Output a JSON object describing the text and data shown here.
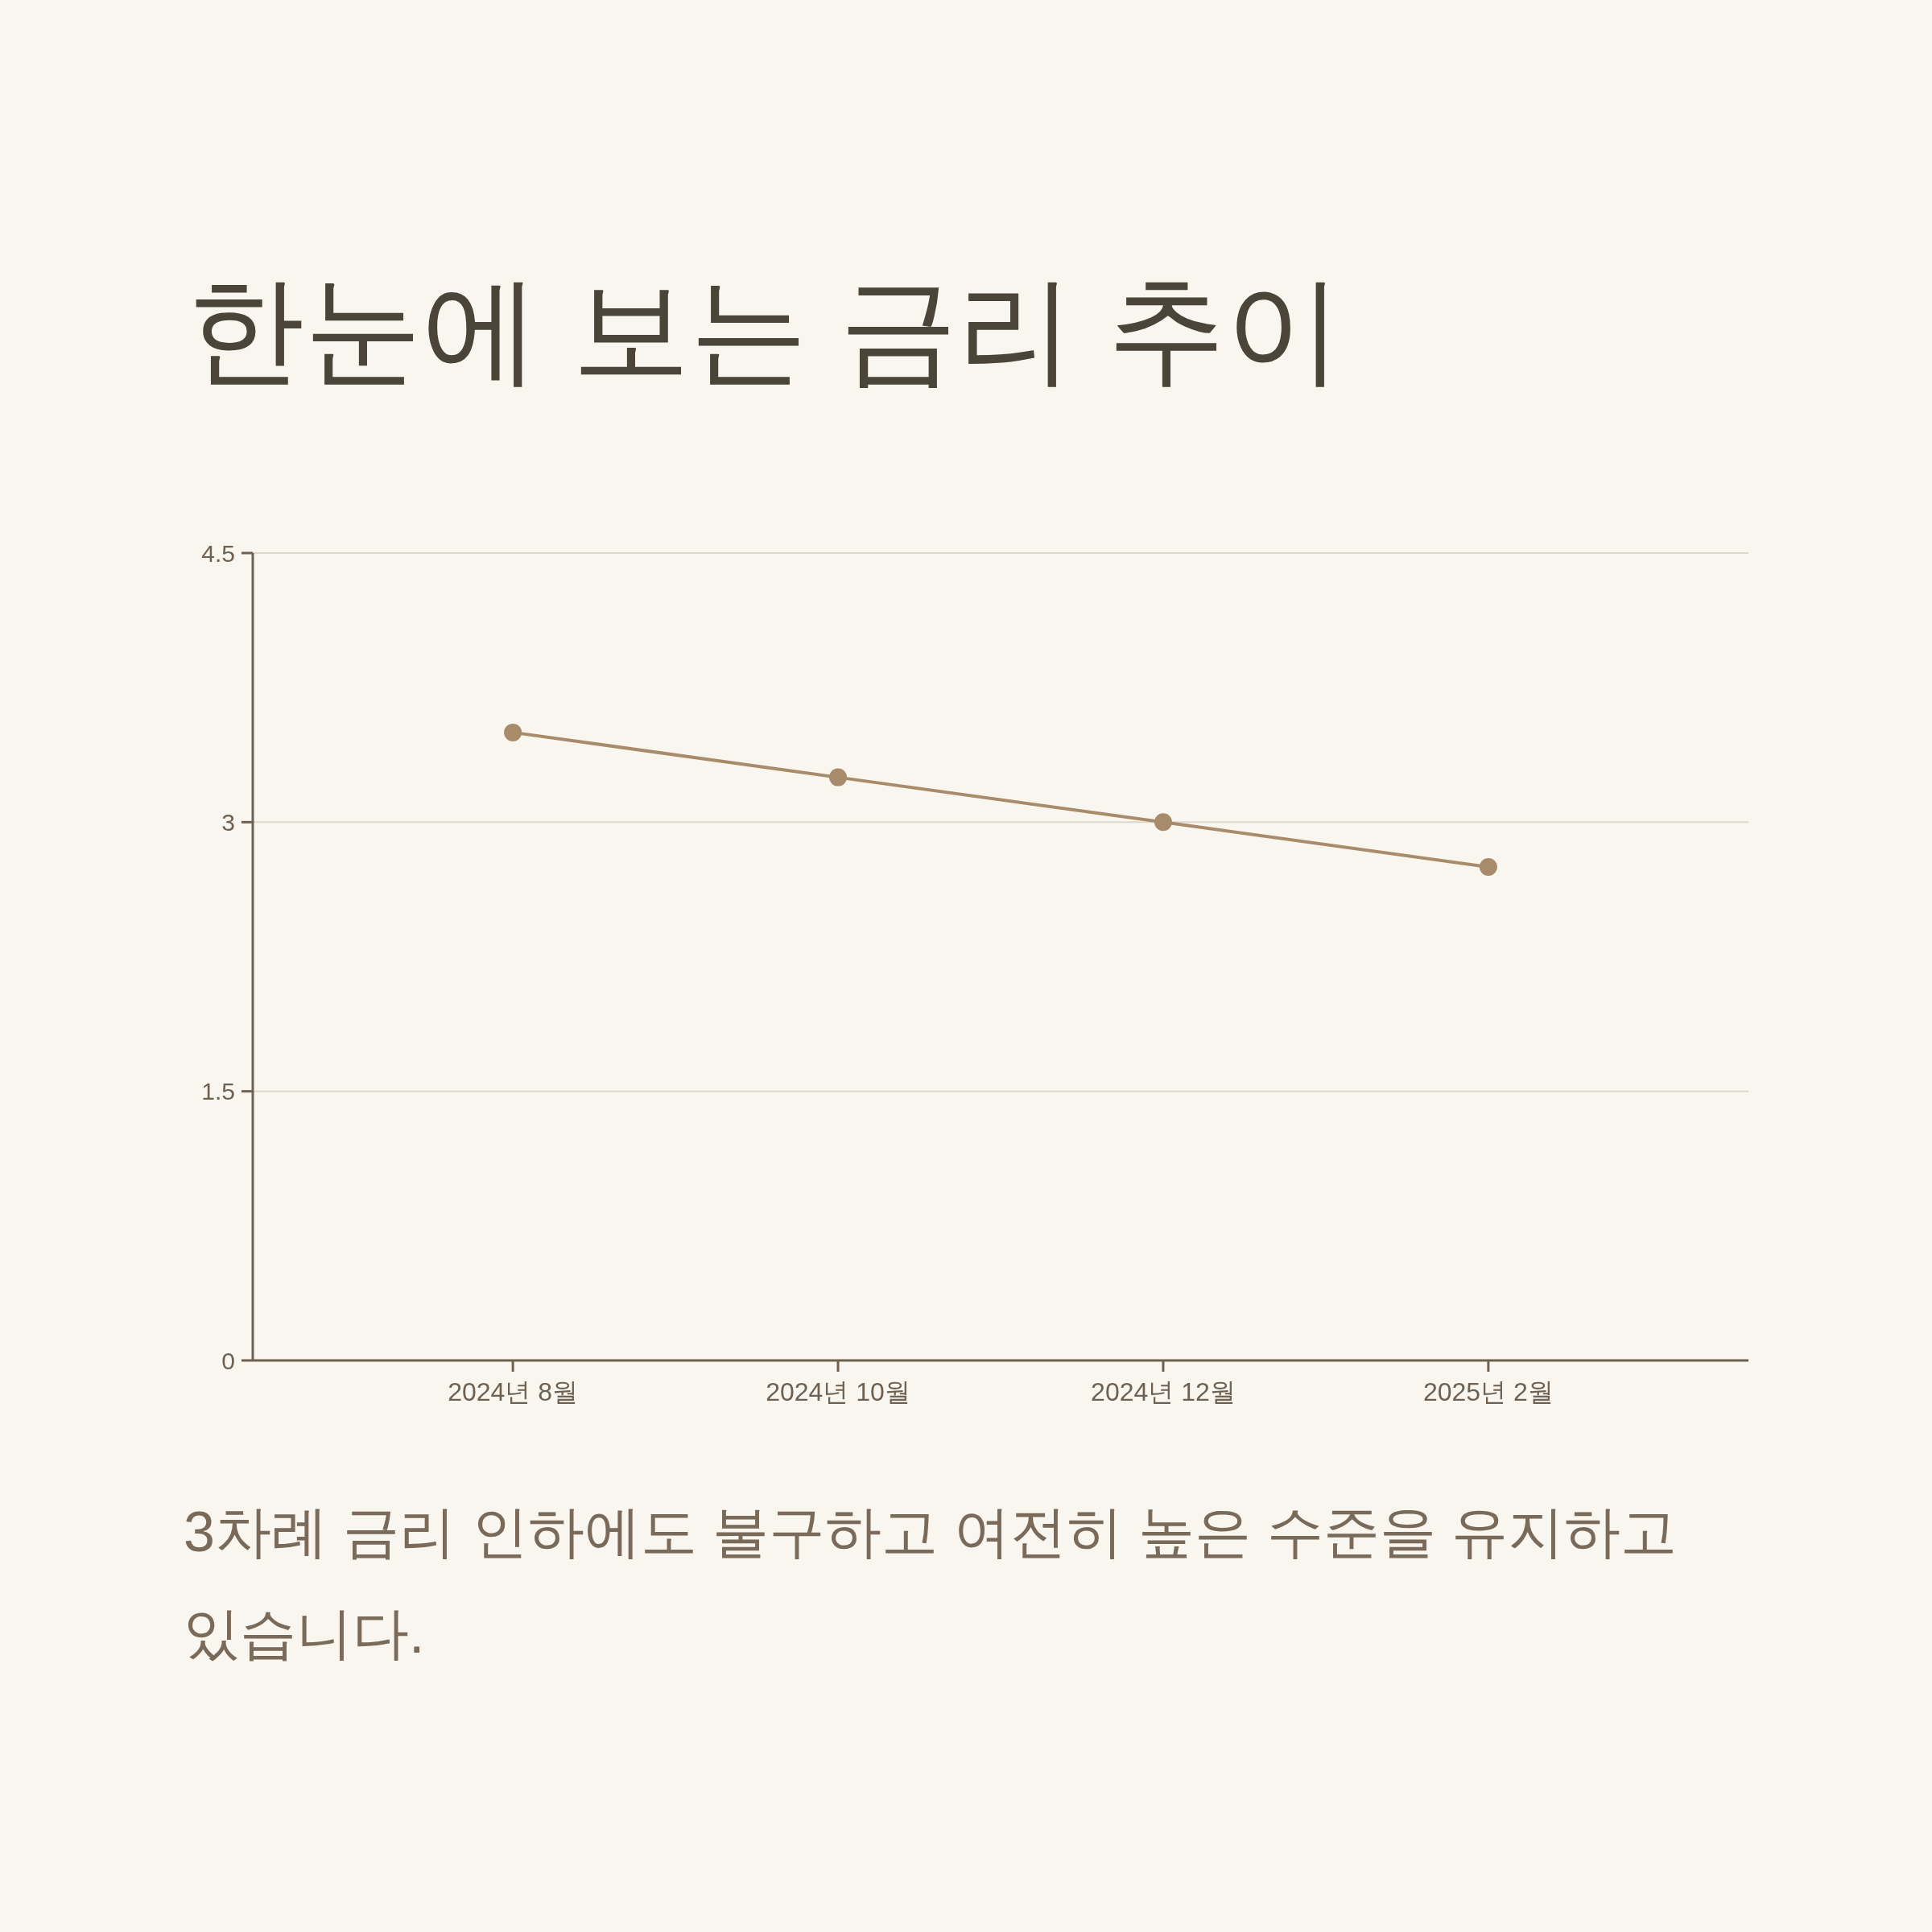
{
  "chart_data": {
    "type": "line",
    "title": "한눈에 보는 금리 추이",
    "categories": [
      "2024년 8월",
      "2024년 10월",
      "2024년 12월",
      "2025년 2월"
    ],
    "series": [
      {
        "color": "#a88b6a",
        "values": [
          3.5,
          3.25,
          3.0,
          2.75
        ]
      }
    ],
    "ylim": [
      0,
      4.5
    ],
    "yticks": [
      0,
      1.5,
      3,
      4.5
    ],
    "grid": "y",
    "marker": "circle",
    "line_style": "solid",
    "annotations": [
      "3차례 금리 인하에도 불구하고 여전히 높은 수준을 유지하고 있습니다."
    ]
  }
}
